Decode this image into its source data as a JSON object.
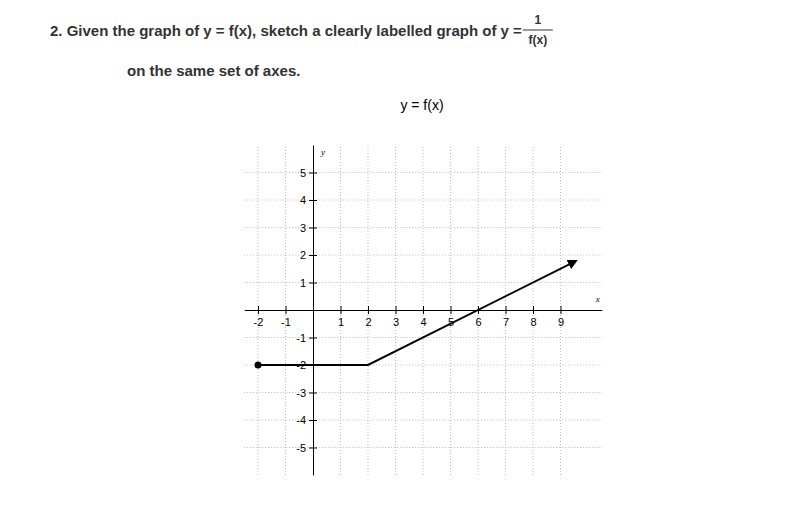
{
  "question": {
    "line1": "2. Given the graph of y = f(x), sketch a clearly labelled graph of y =",
    "fraction_numerator": "1",
    "fraction_denominator": "f(x)",
    "line2": "on the same set of axes."
  },
  "chart_data": {
    "type": "line",
    "title": "y = f(x)",
    "x_label": "x",
    "y_label": "y",
    "xlim": [
      -2.5,
      10.5
    ],
    "ylim": [
      -6,
      6
    ],
    "xticks": [
      -2,
      -1,
      1,
      2,
      3,
      4,
      5,
      6,
      7,
      8,
      9
    ],
    "yticks": [
      -5,
      -4,
      -3,
      -2,
      -1,
      1,
      2,
      3,
      4,
      5
    ],
    "grid": true,
    "series": [
      {
        "name": "f(x)",
        "color": "#000000",
        "marker": "dot",
        "line_style": "solid",
        "x": [
          -2,
          2,
          9.5
        ],
        "values": [
          -2,
          -2,
          1.75
        ]
      }
    ]
  }
}
